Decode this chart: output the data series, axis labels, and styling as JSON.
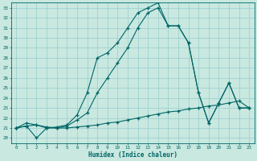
{
  "bg_color": "#c8e8e0",
  "grid_color": "#99cccc",
  "line_color": "#006666",
  "xlabel": "Humidex (Indice chaleur)",
  "xlim": [
    -0.5,
    23.5
  ],
  "ylim": [
    19.5,
    33.5
  ],
  "xticks": [
    0,
    1,
    2,
    3,
    4,
    5,
    6,
    7,
    8,
    9,
    10,
    11,
    12,
    13,
    14,
    15,
    16,
    17,
    18,
    19,
    20,
    21,
    22,
    23
  ],
  "yticks": [
    20,
    21,
    22,
    23,
    24,
    25,
    26,
    27,
    28,
    29,
    30,
    31,
    32,
    33
  ],
  "line1_x": [
    0,
    1,
    2,
    3,
    4,
    5,
    6,
    7,
    8,
    9,
    10,
    11,
    12,
    13,
    14,
    15,
    16,
    17,
    18,
    19,
    20,
    21,
    22,
    23
  ],
  "line1_y": [
    21.0,
    21.5,
    21.3,
    21.0,
    21.0,
    21.0,
    21.1,
    21.2,
    21.3,
    21.5,
    21.6,
    21.8,
    22.0,
    22.2,
    22.4,
    22.6,
    22.7,
    22.9,
    23.0,
    23.2,
    23.3,
    23.5,
    23.7,
    23.0
  ],
  "line2_x": [
    0,
    1,
    2,
    3,
    4,
    5,
    6,
    7,
    8,
    9,
    10,
    11,
    12,
    13,
    14,
    15,
    16,
    17,
    18,
    19,
    20,
    21,
    22,
    23
  ],
  "line2_y": [
    21.0,
    21.2,
    21.3,
    21.1,
    21.0,
    21.2,
    21.8,
    22.5,
    24.5,
    26.0,
    27.5,
    29.0,
    31.0,
    32.5,
    33.0,
    31.2,
    31.2,
    29.5,
    24.5,
    21.5,
    23.5,
    25.5,
    23.0,
    23.0
  ],
  "line3_x": [
    0,
    1,
    2,
    3,
    4,
    5,
    6,
    7,
    8,
    9,
    10,
    11,
    12,
    13,
    14,
    15,
    16,
    17,
    18,
    19,
    20,
    21,
    22,
    23
  ],
  "line3_y": [
    21.0,
    21.2,
    20.0,
    21.0,
    21.1,
    21.3,
    22.3,
    24.5,
    28.0,
    28.5,
    29.5,
    31.0,
    32.5,
    33.0,
    33.5,
    31.2,
    31.2,
    29.5,
    24.5,
    21.5,
    23.5,
    25.5,
    23.0,
    23.0
  ]
}
